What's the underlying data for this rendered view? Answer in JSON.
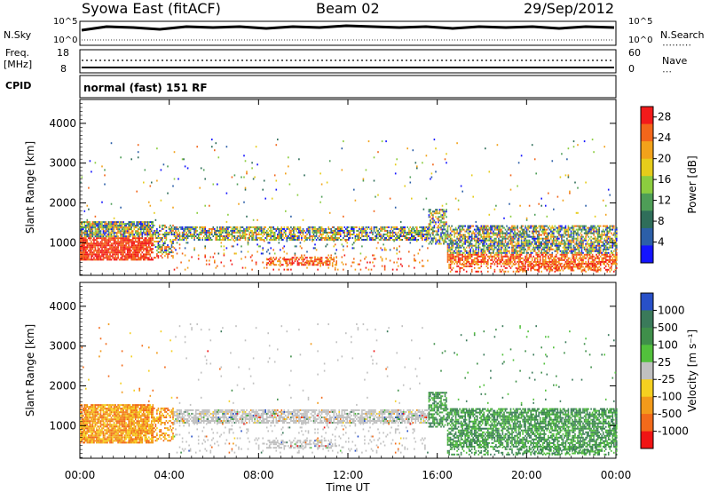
{
  "header": {
    "station": "Syowa East (fitACF)",
    "beam": "Beam 02",
    "date": "29/Sep/2012"
  },
  "status_panels": {
    "nsky_label": "N.Sky",
    "nsky_ticks": [
      "10^5",
      "10^0"
    ],
    "nsearch_label": "N.Search",
    "nsearch_ticks": [
      "10^5",
      "10^0"
    ],
    "freq_label": "Freq.",
    "freq_unit": "[MHz]",
    "freq_ticks": [
      "18",
      "8"
    ],
    "nave_label": "Nave",
    "nave_ticks": [
      "60",
      "0"
    ],
    "cpid_label": "CPID",
    "cpid_text": "normal (fast) 151 RF"
  },
  "chart_data": [
    {
      "type": "heatmap",
      "name": "power",
      "ylabel": "Slant Range [km]",
      "yticks": [
        "1000",
        "2000",
        "3000",
        "4000"
      ],
      "ylim": [
        180,
        4600
      ],
      "xticks": [
        "00:00",
        "04:00",
        "08:00",
        "12:00",
        "16:00",
        "20:00",
        "00:00"
      ],
      "xlim_hours": [
        0,
        24
      ],
      "colorbar_label": "Power [dB]",
      "colorbar_ticks": [
        "4",
        "8",
        "12",
        "16",
        "20",
        "24",
        "28"
      ],
      "colorbar_range": [
        0,
        30
      ],
      "colors": [
        "#1414ff",
        "#2c5fa8",
        "#2f6e5a",
        "#4e9e57",
        "#8ccd3f",
        "#e6cc1a",
        "#f2a21a",
        "#f2661a",
        "#f21a1a"
      ]
    },
    {
      "type": "heatmap",
      "name": "velocity",
      "ylabel": "Slant Range [km]",
      "yticks": [
        "1000",
        "2000",
        "3000",
        "4000"
      ],
      "ylim": [
        180,
        4600
      ],
      "xticks": [
        "00:00",
        "04:00",
        "08:00",
        "12:00",
        "16:00",
        "20:00",
        "00:00"
      ],
      "xlim_hours": [
        0,
        24
      ],
      "xlabel": "Time UT",
      "colorbar_label": "Velocity [m s⁻¹]",
      "colorbar_ticks": [
        "1000",
        "500",
        "100",
        "25",
        "-25",
        "-100",
        "-500",
        "-1000"
      ],
      "colors": [
        "#2850c8",
        "#3a7a5a",
        "#3f8f4a",
        "#52c03c",
        "#c0c0c0",
        "#f5d020",
        "#f29a1a",
        "#f26a1a",
        "#f01414"
      ]
    }
  ]
}
